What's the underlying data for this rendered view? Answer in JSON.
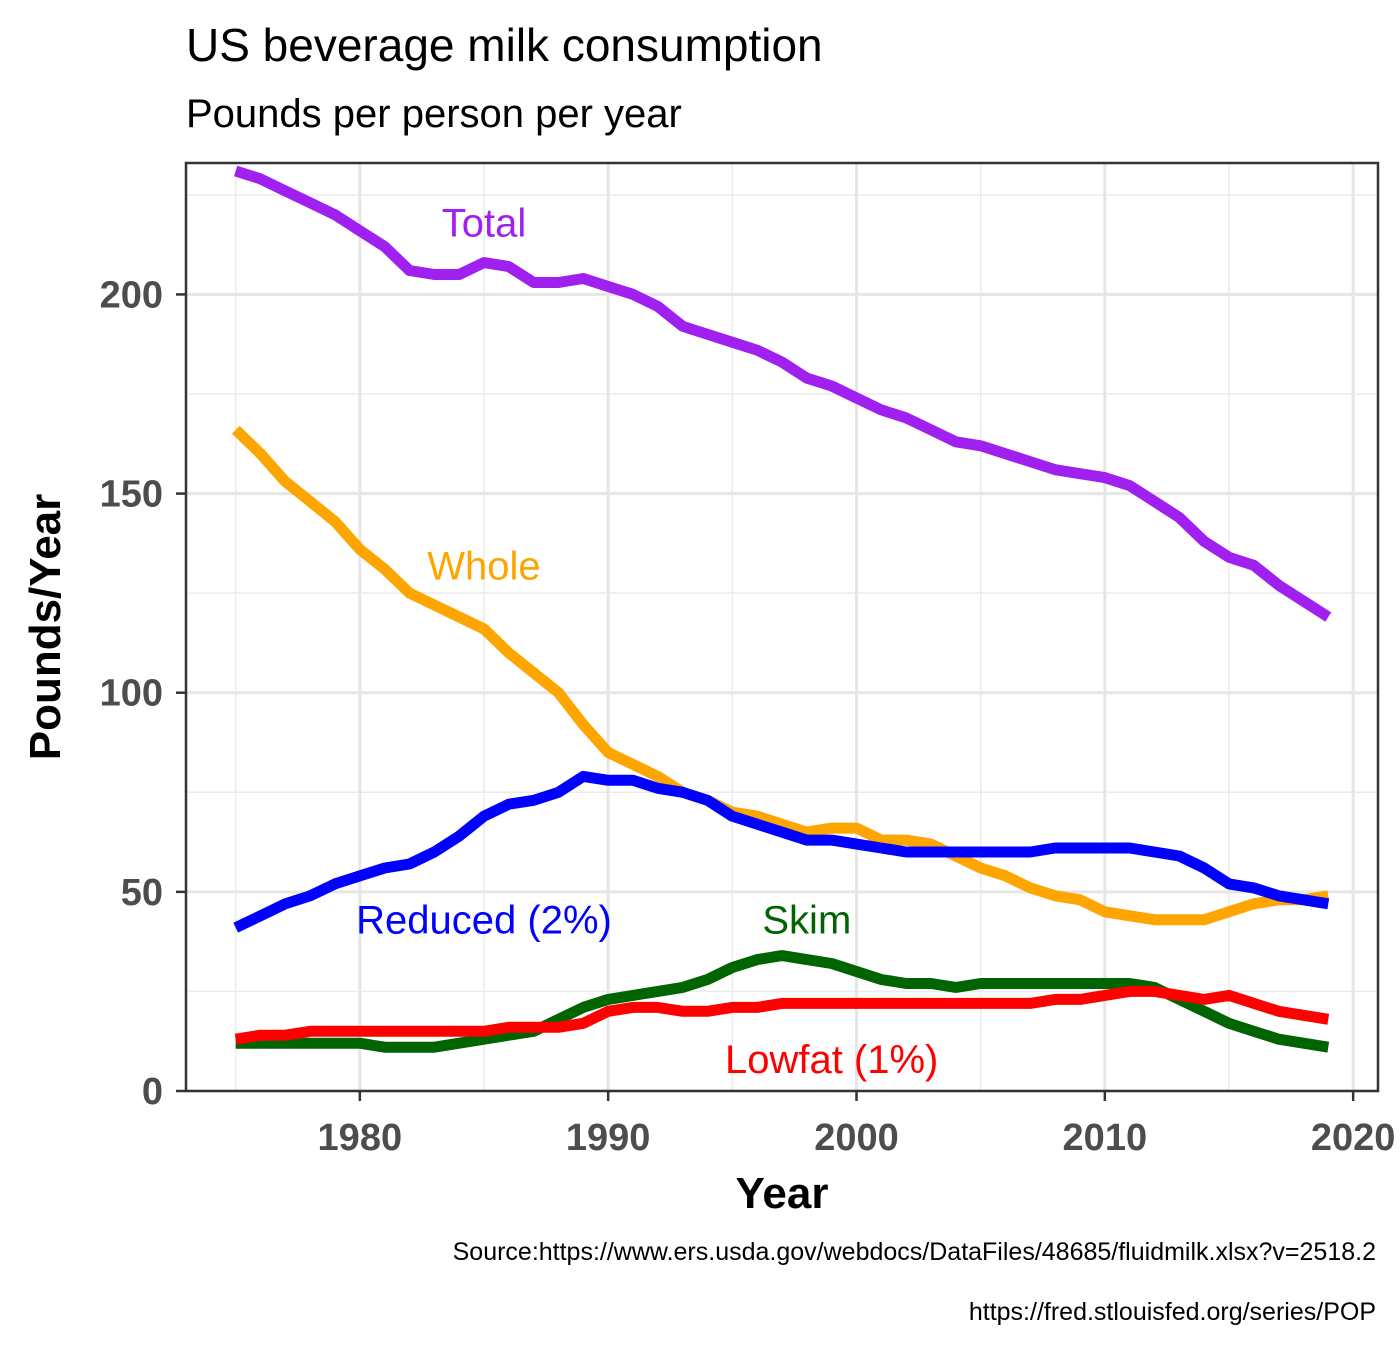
{
  "chart_data": {
    "type": "line",
    "title": "US beverage milk consumption",
    "subtitle": "Pounds per person per year",
    "xlabel": "Year",
    "ylabel": "Pounds/Year",
    "xlim": [
      1973,
      2021
    ],
    "ylim": [
      0,
      233
    ],
    "xticks": [
      1980,
      1990,
      2000,
      2010,
      2020
    ],
    "yticks": [
      0,
      50,
      100,
      150,
      200
    ],
    "grid": true,
    "legend": "direct labels on plot",
    "x": [
      1975,
      1976,
      1977,
      1978,
      1979,
      1980,
      1981,
      1982,
      1983,
      1984,
      1985,
      1986,
      1987,
      1988,
      1989,
      1990,
      1991,
      1992,
      1993,
      1994,
      1995,
      1996,
      1997,
      1998,
      1999,
      2000,
      2001,
      2002,
      2003,
      2004,
      2005,
      2006,
      2007,
      2008,
      2009,
      2010,
      2011,
      2012,
      2013,
      2014,
      2015,
      2016,
      2017,
      2018,
      2019
    ],
    "series": [
      {
        "name": "Total",
        "color": "#a020f0",
        "values": [
          231,
          229,
          226,
          223,
          220,
          216,
          212,
          206,
          205,
          205,
          208,
          207,
          203,
          203,
          204,
          202,
          200,
          197,
          192,
          190,
          188,
          186,
          183,
          179,
          177,
          174,
          171,
          169,
          166,
          163,
          162,
          160,
          158,
          156,
          155,
          154,
          152,
          148,
          144,
          138,
          134,
          132,
          127,
          123,
          119
        ]
      },
      {
        "name": "Whole",
        "color": "#ffa500",
        "values": [
          166,
          160,
          153,
          148,
          143,
          136,
          131,
          125,
          122,
          119,
          116,
          110,
          105,
          100,
          92,
          85,
          82,
          79,
          75,
          73,
          70,
          69,
          67,
          65,
          66,
          66,
          63,
          63,
          62,
          59,
          56,
          54,
          51,
          49,
          48,
          45,
          44,
          43,
          43,
          43,
          45,
          47,
          48,
          48,
          49
        ]
      },
      {
        "name": "Reduced (2%)",
        "color": "#0000ff",
        "values": [
          41,
          44,
          47,
          49,
          52,
          54,
          56,
          57,
          60,
          64,
          69,
          72,
          73,
          75,
          79,
          78,
          78,
          76,
          75,
          73,
          69,
          67,
          65,
          63,
          63,
          62,
          61,
          60,
          60,
          60,
          60,
          60,
          60,
          61,
          61,
          61,
          61,
          60,
          59,
          56,
          52,
          51,
          49,
          48,
          47
        ]
      },
      {
        "name": "Skim",
        "color": "#006400",
        "values": [
          12,
          12,
          12,
          12,
          12,
          12,
          11,
          11,
          11,
          12,
          13,
          14,
          15,
          18,
          21,
          23,
          24,
          25,
          26,
          28,
          31,
          33,
          34,
          33,
          32,
          30,
          28,
          27,
          27,
          26,
          27,
          27,
          27,
          27,
          27,
          27,
          27,
          26,
          23,
          20,
          17,
          15,
          13,
          12,
          11
        ]
      },
      {
        "name": "Lowfat (1%)",
        "color": "#ff0000",
        "values": [
          13,
          14,
          14,
          15,
          15,
          15,
          15,
          15,
          15,
          15,
          15,
          16,
          16,
          16,
          17,
          20,
          21,
          21,
          20,
          20,
          21,
          21,
          22,
          22,
          22,
          22,
          22,
          22,
          22,
          22,
          22,
          22,
          22,
          23,
          23,
          24,
          25,
          25,
          24,
          23,
          24,
          22,
          20,
          19,
          18
        ]
      }
    ],
    "series_labels": [
      {
        "series": "Total",
        "text": "Total",
        "x": 1985,
        "y": 218
      },
      {
        "series": "Whole",
        "text": "Whole",
        "x": 1985,
        "y": 132
      },
      {
        "series": "Reduced (2%)",
        "text": "Reduced (2%)",
        "x": 1985,
        "y": 43
      },
      {
        "series": "Skim",
        "text": "Skim",
        "x": 1998,
        "y": 43
      },
      {
        "series": "Lowfat (1%)",
        "text": "Lowfat (1%)",
        "x": 1999,
        "y": 8
      }
    ]
  },
  "captions": {
    "source": "Source:https://www.ers.usda.gov/webdocs/DataFiles/48685/fluidmilk.xlsx?v=2518.2",
    "population": "https://fred.stlouisfed.org/series/POP"
  }
}
